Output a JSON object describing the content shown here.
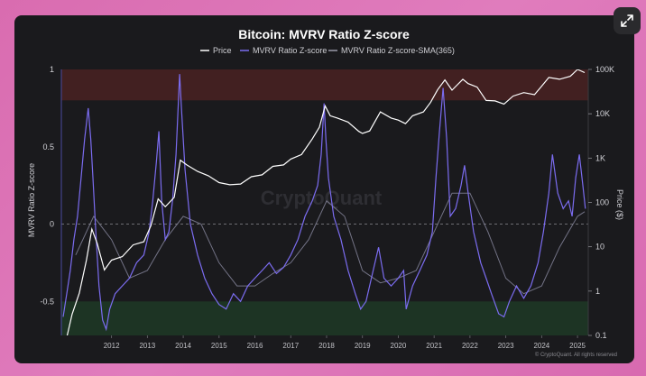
{
  "ui": {
    "expand_icon": "expand-arrows-icon"
  },
  "chart_data": {
    "type": "line",
    "title": "Bitcoin: MVRV Ratio Z-score",
    "legend": [
      {
        "name": "Price",
        "color": "#ffffff"
      },
      {
        "name": "MVRV Ratio Z-score",
        "color": "#7b6cf0"
      },
      {
        "name": "MVRV Ratio Z-score-SMA(365)",
        "color": "#9a9aaa"
      }
    ],
    "ylabel_left": "MVRV Ratio Z-score",
    "ylabel_right": "Price ($)",
    "y_left_ticks": [
      "1",
      "0.5",
      "0",
      "-0.5"
    ],
    "y_left_range": [
      -0.72,
      1.0
    ],
    "y_right_ticks": [
      "100K",
      "10K",
      "1K",
      "100",
      "10",
      "1",
      "0.1"
    ],
    "y_right_log_range": [
      0.1,
      100000
    ],
    "x_ticks": [
      "2012",
      "2013",
      "2014",
      "2015",
      "2016",
      "2017",
      "2018",
      "2019",
      "2020",
      "2021",
      "2022",
      "2023",
      "2024",
      "2025"
    ],
    "x_range": [
      2010.6,
      2025.3
    ],
    "watermark": "CryptoQuant",
    "footer": "© CryptoQuant. All rights reserved",
    "bands": [
      {
        "name": "overvalued-zone",
        "from": 0.8,
        "to": 1.0,
        "color": "#4a2222"
      },
      {
        "name": "undervalued-zone",
        "from": -0.72,
        "to": -0.5,
        "color": "#1e3a26"
      }
    ],
    "series": [
      {
        "name": "Price",
        "axis": "right",
        "x": [
          2010.7,
          2010.9,
          2011.1,
          2011.3,
          2011.45,
          2011.6,
          2011.8,
          2012.0,
          2012.3,
          2012.6,
          2012.9,
          2013.1,
          2013.3,
          2013.5,
          2013.75,
          2013.92,
          2014.1,
          2014.4,
          2014.7,
          2015.0,
          2015.3,
          2015.6,
          2015.9,
          2016.2,
          2016.5,
          2016.8,
          2017.0,
          2017.3,
          2017.6,
          2017.8,
          2017.96,
          2018.1,
          2018.3,
          2018.6,
          2018.9,
          2019.0,
          2019.2,
          2019.5,
          2019.8,
          2020.0,
          2020.2,
          2020.4,
          2020.7,
          2020.9,
          2021.1,
          2021.3,
          2021.5,
          2021.8,
          2021.95,
          2022.2,
          2022.45,
          2022.7,
          2022.95,
          2023.2,
          2023.5,
          2023.8,
          2024.0,
          2024.2,
          2024.5,
          2024.8,
          2025.0,
          2025.2
        ],
        "values": [
          0.06,
          0.3,
          0.9,
          5,
          25,
          12,
          3,
          5,
          6,
          11,
          13,
          30,
          120,
          80,
          130,
          900,
          700,
          500,
          400,
          280,
          250,
          260,
          380,
          420,
          650,
          700,
          950,
          1200,
          2700,
          5000,
          15000,
          9000,
          8000,
          6500,
          4000,
          3600,
          4100,
          11000,
          8000,
          7200,
          6000,
          9000,
          11000,
          18000,
          35000,
          58000,
          34000,
          60000,
          48000,
          40000,
          20000,
          19500,
          16500,
          25000,
          30000,
          27000,
          42000,
          66000,
          60000,
          70000,
          100000,
          85000
        ]
      },
      {
        "name": "MVRV Ratio Z-score",
        "axis": "left",
        "x": [
          2010.65,
          2010.75,
          2010.85,
          2010.95,
          2011.05,
          2011.15,
          2011.25,
          2011.35,
          2011.42,
          2011.48,
          2011.55,
          2011.65,
          2011.75,
          2011.85,
          2011.95,
          2012.1,
          2012.3,
          2012.5,
          2012.7,
          2012.9,
          2013.05,
          2013.15,
          2013.25,
          2013.32,
          2013.4,
          2013.5,
          2013.6,
          2013.7,
          2013.8,
          2013.9,
          2013.95,
          2014.05,
          2014.2,
          2014.4,
          2014.6,
          2014.8,
          2015.0,
          2015.2,
          2015.4,
          2015.6,
          2015.8,
          2016.0,
          2016.2,
          2016.4,
          2016.6,
          2016.8,
          2017.0,
          2017.2,
          2017.4,
          2017.6,
          2017.75,
          2017.85,
          2017.93,
          2017.98,
          2018.05,
          2018.2,
          2018.4,
          2018.6,
          2018.8,
          2018.95,
          2019.1,
          2019.3,
          2019.45,
          2019.6,
          2019.8,
          2020.0,
          2020.15,
          2020.22,
          2020.4,
          2020.6,
          2020.8,
          2020.95,
          2021.05,
          2021.15,
          2021.25,
          2021.35,
          2021.45,
          2021.6,
          2021.75,
          2021.85,
          2021.95,
          2022.1,
          2022.3,
          2022.45,
          2022.6,
          2022.8,
          2022.95,
          2023.1,
          2023.3,
          2023.5,
          2023.7,
          2023.9,
          2024.05,
          2024.2,
          2024.3,
          2024.45,
          2024.6,
          2024.75,
          2024.85,
          2024.95,
          2025.05,
          2025.15,
          2025.22
        ],
        "values": [
          -0.6,
          -0.45,
          -0.3,
          -0.1,
          0.05,
          0.3,
          0.55,
          0.75,
          0.55,
          0.3,
          0.0,
          -0.4,
          -0.62,
          -0.68,
          -0.55,
          -0.45,
          -0.4,
          -0.35,
          -0.25,
          -0.2,
          -0.05,
          0.15,
          0.4,
          0.6,
          0.15,
          -0.1,
          -0.05,
          0.15,
          0.45,
          0.97,
          0.75,
          0.35,
          0.0,
          -0.2,
          -0.35,
          -0.45,
          -0.52,
          -0.55,
          -0.45,
          -0.5,
          -0.4,
          -0.35,
          -0.3,
          -0.25,
          -0.32,
          -0.28,
          -0.2,
          -0.1,
          0.05,
          0.15,
          0.25,
          0.45,
          0.78,
          0.55,
          0.3,
          0.05,
          -0.1,
          -0.3,
          -0.45,
          -0.55,
          -0.5,
          -0.3,
          -0.15,
          -0.35,
          -0.4,
          -0.35,
          -0.3,
          -0.55,
          -0.4,
          -0.3,
          -0.2,
          -0.05,
          0.3,
          0.6,
          0.88,
          0.55,
          0.05,
          0.1,
          0.25,
          0.38,
          0.2,
          -0.05,
          -0.25,
          -0.35,
          -0.45,
          -0.58,
          -0.6,
          -0.5,
          -0.4,
          -0.48,
          -0.4,
          -0.25,
          -0.05,
          0.2,
          0.45,
          0.2,
          0.1,
          0.15,
          0.05,
          0.3,
          0.45,
          0.25,
          0.1
        ]
      },
      {
        "name": "MVRV Ratio Z-score-SMA(365)",
        "axis": "left",
        "x": [
          2011.0,
          2011.5,
          2012.0,
          2012.5,
          2013.0,
          2013.5,
          2014.0,
          2014.5,
          2015.0,
          2015.5,
          2016.0,
          2016.5,
          2017.0,
          2017.5,
          2018.0,
          2018.5,
          2019.0,
          2019.5,
          2020.0,
          2020.5,
          2021.0,
          2021.5,
          2022.0,
          2022.5,
          2023.0,
          2023.5,
          2024.0,
          2024.5,
          2025.0,
          2025.2
        ],
        "values": [
          -0.2,
          0.05,
          -0.1,
          -0.35,
          -0.3,
          -0.1,
          0.05,
          0.0,
          -0.25,
          -0.4,
          -0.4,
          -0.32,
          -0.25,
          -0.1,
          0.15,
          0.05,
          -0.3,
          -0.38,
          -0.35,
          -0.3,
          -0.05,
          0.2,
          0.2,
          -0.05,
          -0.35,
          -0.45,
          -0.4,
          -0.15,
          0.05,
          0.08
        ]
      }
    ]
  }
}
